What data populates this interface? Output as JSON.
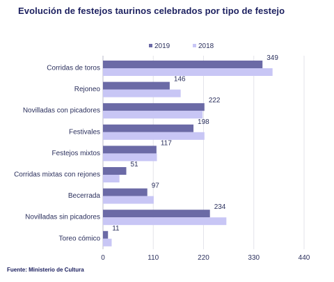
{
  "chart_data": {
    "type": "bar",
    "orientation": "horizontal",
    "title": "Evolución de festejos taurinos celebrados por tipo de festejo",
    "source": "Fuente: Ministerio de Cultura",
    "categories": [
      "Corridas de toros",
      "Rejoneo",
      "Novilladas con picadores",
      "Festivales",
      "Festejos mixtos",
      "Corridas mixtas con rejones",
      "Becerrada",
      "Novilladas sin picadores",
      "Toreo cómico"
    ],
    "series": [
      {
        "name": "2019",
        "color": "#6b6aa6",
        "values": [
          349,
          146,
          222,
          198,
          117,
          51,
          97,
          234,
          11
        ],
        "labeled": true
      },
      {
        "name": "2018",
        "color": "#c8c6f5",
        "values": [
          371,
          170,
          218,
          222,
          118,
          36,
          111,
          270,
          19
        ],
        "labeled": false
      }
    ],
    "xlim": [
      0,
      440
    ],
    "xticks": [
      0,
      110,
      220,
      330,
      440
    ],
    "grid": true,
    "legend_position": "top"
  }
}
